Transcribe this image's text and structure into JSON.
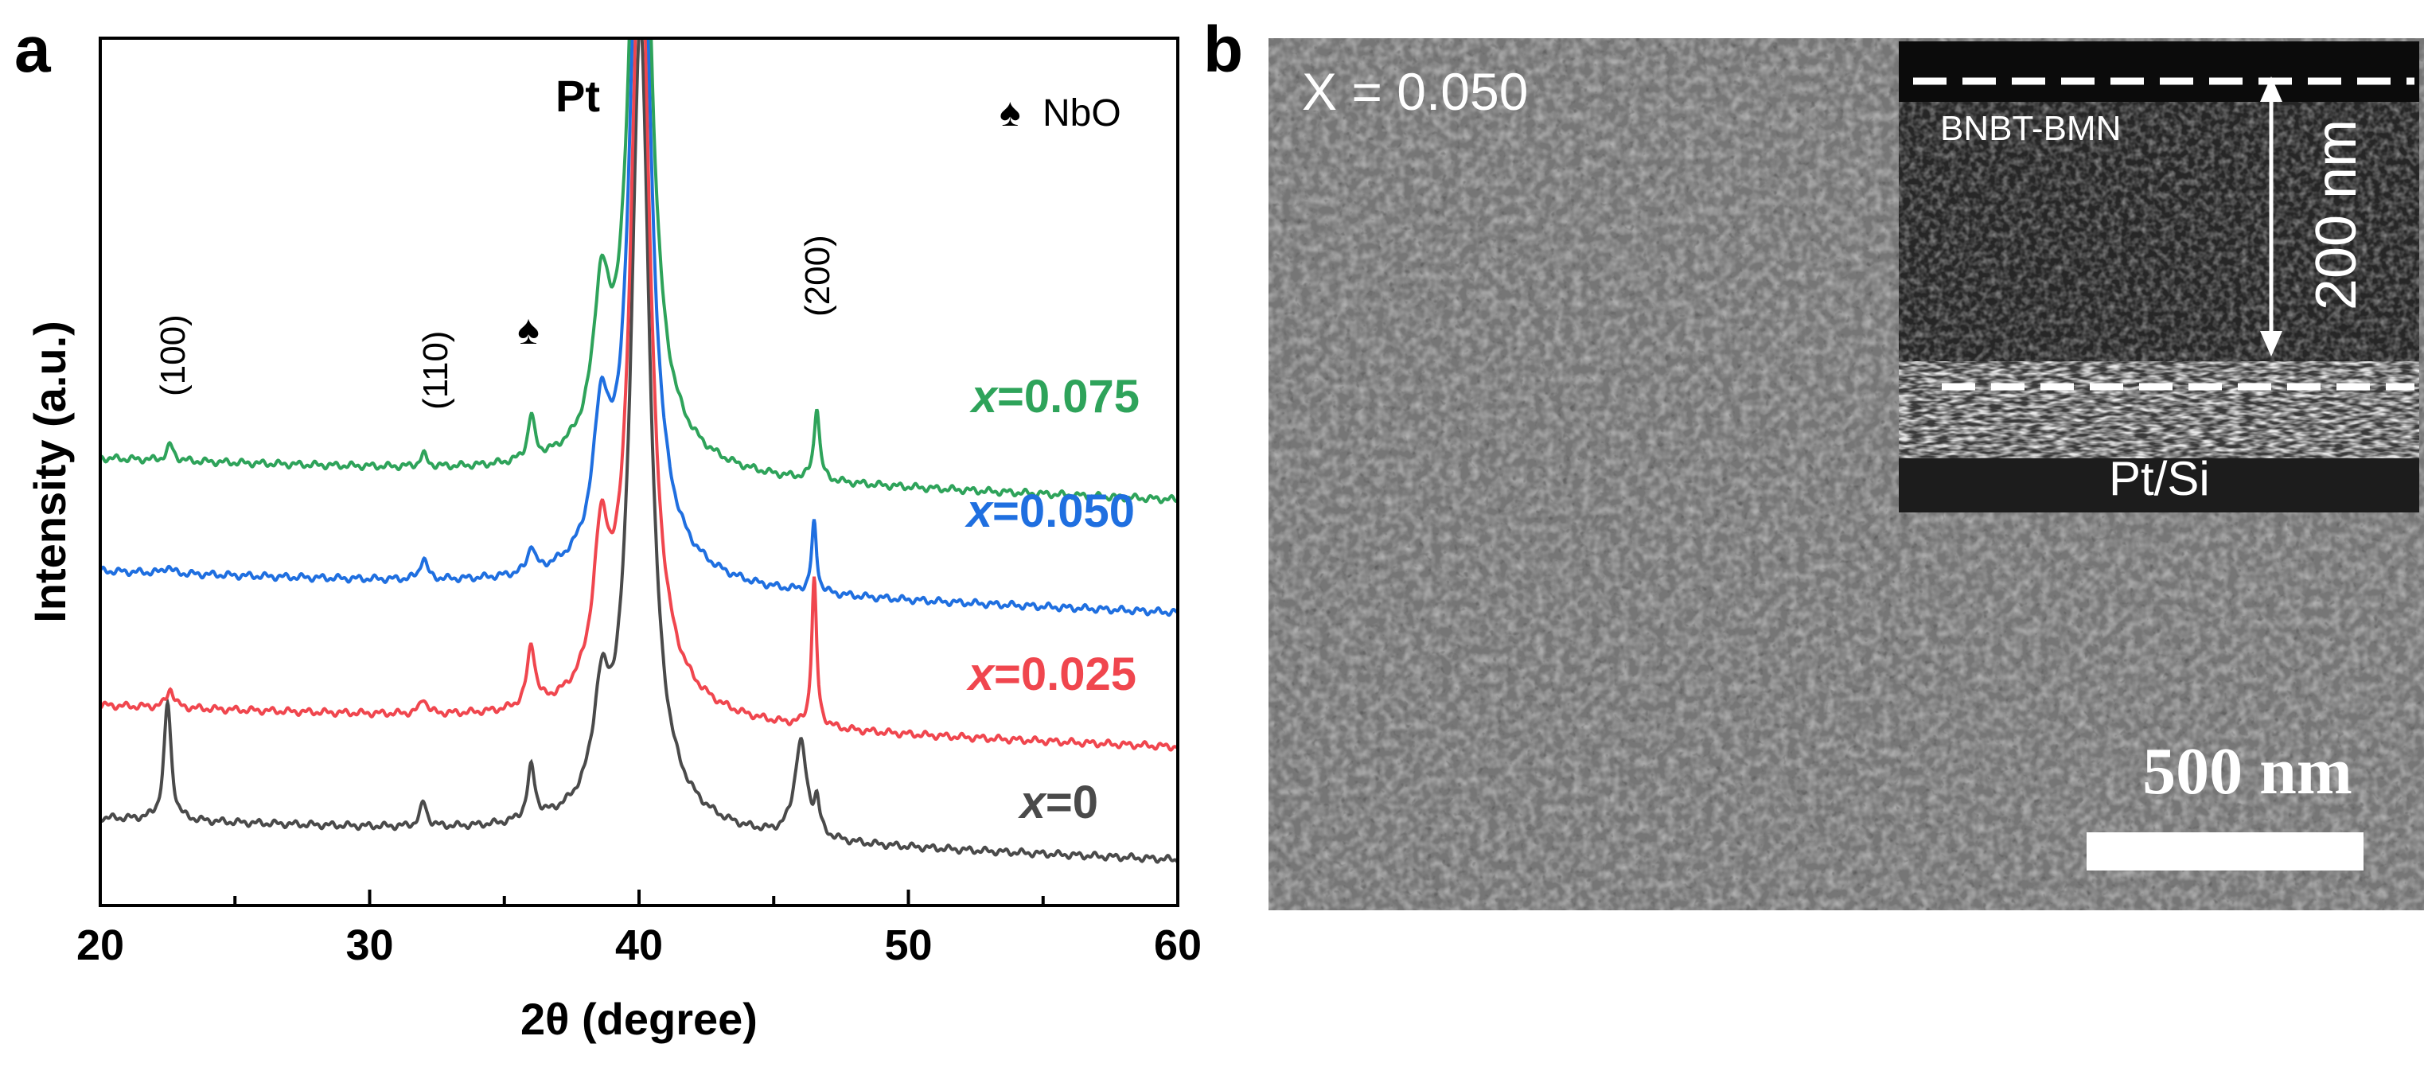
{
  "panel_a": {
    "label": "a",
    "peak_labels": {
      "p100": "(100)",
      "p110": "(110)",
      "p200": "(200)",
      "pt": "Pt",
      "spade": "♠"
    },
    "legend": {
      "symbol": "♠",
      "text": "NbO"
    },
    "series_labels": [
      {
        "italic": "x",
        "rest": "=0.075",
        "color": "#2ea35a"
      },
      {
        "italic": "x",
        "rest": "=0.050",
        "color": "#1f6fe0"
      },
      {
        "italic": "x",
        "rest": "=0.025",
        "color": "#f0464e"
      },
      {
        "italic": "x",
        "rest": "=0",
        "color": "#4a4a4a"
      }
    ]
  },
  "panel_b": {
    "label": "b",
    "composition": "X = 0.050",
    "inset": {
      "film_label": "BNBT-BMN",
      "substrate_label": "Pt/Si",
      "thickness_label": "200 nm"
    },
    "scale_bar": "500 nm"
  },
  "chart_data": {
    "type": "line",
    "title": "",
    "xlabel": "2θ (degree)",
    "ylabel": "Intensity (a.u.)",
    "xlim": [
      20,
      60
    ],
    "xticks": [
      20,
      30,
      40,
      50,
      60
    ],
    "ylim": [
      0,
      1
    ],
    "series": [
      {
        "name": "x=0",
        "color": "#4a4a4a",
        "offset": 0.1,
        "peaks": [
          [
            22.5,
            0.135,
            0.16
          ],
          [
            32.0,
            0.028,
            0.15
          ],
          [
            36.0,
            0.06,
            0.17
          ],
          [
            38.6,
            0.11,
            0.35
          ],
          [
            46.0,
            0.11,
            0.28
          ],
          [
            46.6,
            0.035,
            0.12
          ]
        ]
      },
      {
        "name": "x=0.025",
        "color": "#f0464e",
        "offset": 0.23,
        "peaks": [
          [
            22.6,
            0.022,
            0.16
          ],
          [
            32.0,
            0.018,
            0.15
          ],
          [
            36.0,
            0.07,
            0.18
          ],
          [
            38.6,
            0.16,
            0.35
          ],
          [
            46.5,
            0.17,
            0.11
          ]
        ]
      },
      {
        "name": "x=0.050",
        "color": "#1f6fe0",
        "offset": 0.385,
        "peaks": [
          [
            22.5,
            0.008,
            0.15
          ],
          [
            32.0,
            0.025,
            0.15
          ],
          [
            36.0,
            0.03,
            0.15
          ],
          [
            38.6,
            0.15,
            0.35
          ],
          [
            46.5,
            0.08,
            0.11
          ]
        ]
      },
      {
        "name": "x=0.075",
        "color": "#2ea35a",
        "offset": 0.515,
        "peaks": [
          [
            22.6,
            0.018,
            0.15
          ],
          [
            32.0,
            0.014,
            0.15
          ],
          [
            36.0,
            0.05,
            0.15
          ],
          [
            38.6,
            0.16,
            0.35
          ],
          [
            46.6,
            0.085,
            0.12
          ]
        ]
      }
    ]
  }
}
